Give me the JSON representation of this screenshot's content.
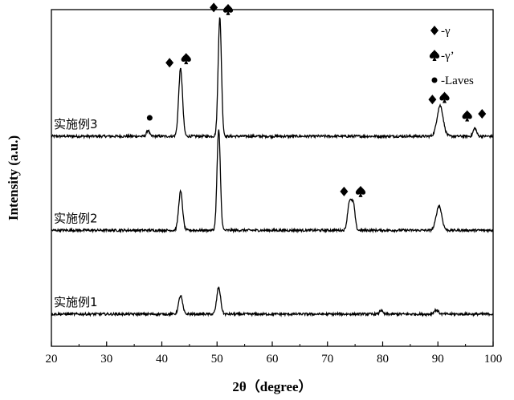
{
  "chart_data": {
    "type": "line",
    "xlabel": "2θ（degree）",
    "ylabel": "Intensity (a.u.)",
    "xlim": [
      20,
      100
    ],
    "xticks": [
      20,
      30,
      40,
      50,
      60,
      70,
      80,
      90,
      100
    ],
    "grid": false,
    "yticks_shown": false,
    "legend": {
      "placement": "top-right",
      "entries": [
        {
          "marker": "diamond",
          "label": "-γ"
        },
        {
          "marker": "spade",
          "label": "-γ’"
        },
        {
          "marker": "circle",
          "label": "-Laves"
        }
      ]
    },
    "series": [
      {
        "name": "实施例3",
        "baseline": 0.0,
        "peaks": [
          {
            "x": 37.5,
            "h": 0.03,
            "w": 0.25
          },
          {
            "x": 43.4,
            "h": 0.33,
            "w": 0.35
          },
          {
            "x": 50.5,
            "h": 0.58,
            "w": 0.3
          },
          {
            "x": 90.4,
            "h": 0.15,
            "w": 0.55
          },
          {
            "x": 96.7,
            "h": 0.04,
            "w": 0.3
          }
        ],
        "annotations": [
          {
            "marker": "diamond",
            "x": 41.4,
            "h": 0.36
          },
          {
            "marker": "spade",
            "x": 44.4,
            "h": 0.38
          },
          {
            "marker": "diamond",
            "x": 49.4,
            "h": 0.63
          },
          {
            "marker": "spade",
            "x": 52.0,
            "h": 0.62
          },
          {
            "marker": "circle",
            "x": 37.8,
            "h": 0.09
          },
          {
            "marker": "diamond",
            "x": 89.0,
            "h": 0.18
          },
          {
            "marker": "spade",
            "x": 91.2,
            "h": 0.19
          },
          {
            "marker": "spade",
            "x": 95.3,
            "h": 0.1
          },
          {
            "marker": "diamond",
            "x": 98.0,
            "h": 0.11
          }
        ]
      },
      {
        "name": "实施例2",
        "baseline": -0.46,
        "peaks": [
          {
            "x": 43.4,
            "h": 0.19,
            "w": 0.35
          },
          {
            "x": 50.3,
            "h": 0.49,
            "w": 0.3
          },
          {
            "x": 74.0,
            "h": 0.14,
            "w": 0.35
          },
          {
            "x": 74.7,
            "h": 0.12,
            "w": 0.3
          },
          {
            "x": 90.2,
            "h": 0.12,
            "w": 0.5
          }
        ],
        "annotations": [
          {
            "marker": "diamond",
            "x": 73.0,
            "h": 0.19
          },
          {
            "marker": "spade",
            "x": 76.0,
            "h": 0.19
          }
        ]
      },
      {
        "name": "实施例1",
        "baseline": -0.87,
        "peaks": [
          {
            "x": 43.4,
            "h": 0.09,
            "w": 0.35
          },
          {
            "x": 50.3,
            "h": 0.13,
            "w": 0.35
          },
          {
            "x": 79.7,
            "h": 0.02,
            "w": 0.25
          },
          {
            "x": 89.7,
            "h": 0.02,
            "w": 0.4
          }
        ],
        "annotations": []
      }
    ]
  }
}
